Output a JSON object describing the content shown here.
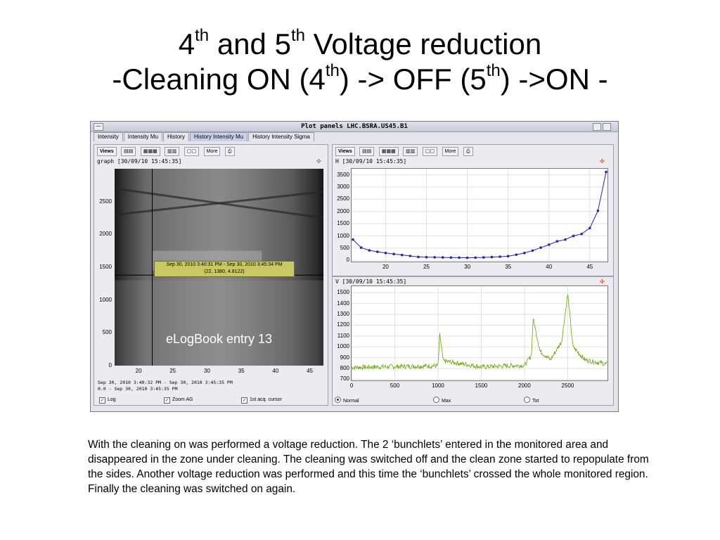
{
  "slide": {
    "title_line1": {
      "a": "4",
      "a_sup": "th",
      "b": " and 5",
      "b_sup": "th",
      "c": " Voltage reduction"
    },
    "title_line2": {
      "a": "-Cleaning ON (4",
      "a_sup": "th",
      "b": ") -> OFF (5",
      "b_sup": "th",
      "c": ") ->ON -"
    },
    "caption": "With the cleaning on was performed a voltage reduction. The 2 ‘bunchlets’ entered in the monitored area and disappeared in the zone under cleaning. The cleaning was switched off and the clean zone started to repopulate from the sides. Another voltage reduction was performed and this time the ‘bunchlets’ crossed the whole monitored region. Finally the cleaning was switched on again."
  },
  "window": {
    "title": "Plot panels LHC.BSRA.US45.B1",
    "tabs": [
      "Intensity",
      "Intensity Mu",
      "History",
      "History Intensity Mu",
      "History Intensity Sigma"
    ],
    "active_tab": 3
  },
  "toolbar": {
    "views_label": "Views",
    "more_label": "More"
  },
  "left_panel": {
    "header": "graph  [30/09/10 15:45:35]",
    "overlay_text": "eLogBook entry 13",
    "tooltip_line1": "Sep 30, 2010 3:40:31 PM - Sep 30, 2010 3:45:34 PM",
    "tooltip_line2": "(22, 1380, 4.8122)",
    "status_line1": "Sep 30, 2010 3:40:32 PM - Sep 30, 2010 3:45:35 PM",
    "status_line2": "0.0 - Sep 30, 2010 3:45:35 PM",
    "checkboxes": [
      {
        "label": "Log",
        "checked": true
      },
      {
        "label": "Zoom AG",
        "checked": true
      },
      {
        "label": "1st acq. cursor",
        "checked": true
      }
    ]
  },
  "right_bottom": {
    "radios": [
      {
        "label": "Normal",
        "selected": true
      },
      {
        "label": "Max",
        "selected": false
      },
      {
        "label": "Tot",
        "selected": false
      }
    ]
  },
  "colors": {
    "h_series": "#2222cc",
    "v_series": "#66aa00",
    "tooltip": "#c9c964"
  },
  "chart_data": [
    {
      "name": "graph",
      "type": "heatmap",
      "x_ticks": [
        20,
        25,
        30,
        35,
        40,
        45
      ],
      "y_ticks": [
        0,
        500,
        1000,
        1500,
        2000,
        2500
      ],
      "xlim": [
        16.5,
        47
      ],
      "ylim": [
        0,
        3000
      ],
      "cursor": {
        "x": 22,
        "y": 1380
      }
    },
    {
      "name": "H",
      "header": "H  [30/09/10 15:45:35]",
      "type": "line",
      "x": [
        16,
        17,
        18,
        19,
        20,
        21,
        22,
        23,
        24,
        25,
        26,
        27,
        28,
        29,
        30,
        31,
        32,
        33,
        34,
        35,
        36,
        37,
        38,
        39,
        40,
        41,
        42,
        43,
        44,
        45,
        46,
        47
      ],
      "y": [
        850,
        520,
        410,
        350,
        300,
        260,
        220,
        180,
        140,
        130,
        125,
        120,
        115,
        110,
        105,
        110,
        120,
        135,
        150,
        170,
        230,
        300,
        400,
        520,
        640,
        780,
        850,
        1000,
        1080,
        1320,
        2030,
        3620
      ],
      "x_ticks": [
        20,
        25,
        30,
        35,
        40,
        45
      ],
      "y_ticks": [
        0,
        500,
        1000,
        1500,
        2000,
        2500,
        3000,
        3500
      ],
      "xlim": [
        16,
        47
      ],
      "ylim": [
        -50,
        3750
      ],
      "grid": true
    },
    {
      "name": "V",
      "header": "V  [30/09/10 15:45:35]",
      "type": "line",
      "peaks": [
        {
          "x": 0,
          "y": 810
        },
        {
          "x": 1000,
          "y": 825
        },
        {
          "x": 1020,
          "y": 1110
        },
        {
          "x": 1060,
          "y": 870
        },
        {
          "x": 1500,
          "y": 815
        },
        {
          "x": 2000,
          "y": 830
        },
        {
          "x": 2080,
          "y": 920
        },
        {
          "x": 2100,
          "y": 1260
        },
        {
          "x": 2180,
          "y": 960
        },
        {
          "x": 2300,
          "y": 880
        },
        {
          "x": 2430,
          "y": 1050
        },
        {
          "x": 2500,
          "y": 1490
        },
        {
          "x": 2560,
          "y": 1000
        },
        {
          "x": 2700,
          "y": 880
        },
        {
          "x": 2950,
          "y": 840
        }
      ],
      "x_ticks": [
        0,
        500,
        1000,
        1500,
        2000,
        2500
      ],
      "y_ticks": [
        700,
        800,
        900,
        1000,
        1100,
        1200,
        1300,
        1400,
        1500
      ],
      "xlim": [
        0,
        2960
      ],
      "ylim": [
        690,
        1560
      ],
      "grid": true
    }
  ]
}
